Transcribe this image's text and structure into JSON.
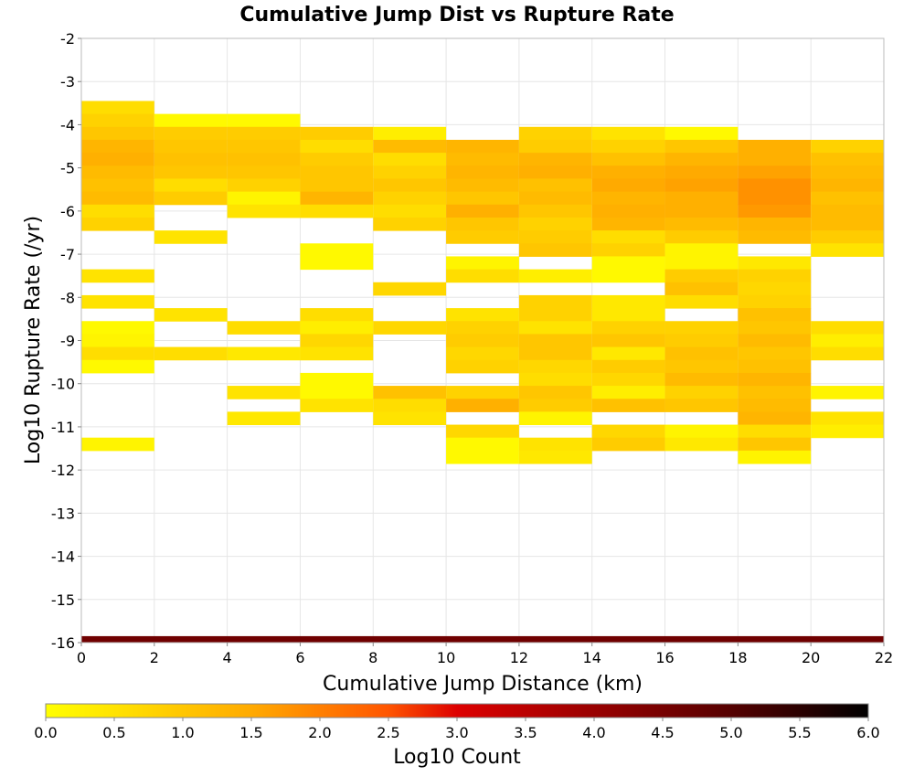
{
  "chart_data": {
    "type": "heatmap",
    "title": "Cumulative Jump Dist vs Rupture Rate",
    "xlabel": "Cumulative Jump Distance (km)",
    "ylabel": "Log10 Rupture Rate (/yr)",
    "xlim": [
      0,
      22
    ],
    "ylim": [
      -16,
      -2
    ],
    "x_ticks": [
      "0",
      "2",
      "4",
      "6",
      "8",
      "10",
      "12",
      "14",
      "16",
      "18",
      "20",
      "22"
    ],
    "y_ticks": [
      "-2",
      "-3",
      "-4",
      "-5",
      "-6",
      "-7",
      "-8",
      "-9",
      "-10",
      "-11",
      "-12",
      "-13",
      "-14",
      "-15",
      "-16"
    ],
    "grid": true,
    "colorbar": {
      "label": "Log10 Count",
      "range": [
        0.0,
        6.0
      ],
      "ticks": [
        "0.0",
        "0.5",
        "1.0",
        "1.5",
        "2.0",
        "2.5",
        "3.0",
        "3.5",
        "4.0",
        "4.5",
        "5.0",
        "5.5",
        "6.0"
      ],
      "placement": "bottom",
      "stops": [
        {
          "v": 0.0,
          "color": "#ffff00"
        },
        {
          "v": 1.5,
          "color": "#ffaa00"
        },
        {
          "v": 2.5,
          "color": "#ff5500"
        },
        {
          "v": 3.0,
          "color": "#dd0000"
        },
        {
          "v": 4.0,
          "color": "#990000"
        },
        {
          "v": 5.0,
          "color": "#550000"
        },
        {
          "v": 6.0,
          "color": "#000000"
        }
      ]
    },
    "bin_size_x": 2,
    "bin_size_y": 0.3,
    "columns": [
      {
        "x": 0,
        "cells": [
          [
            -3.6,
            0.6
          ],
          [
            -3.9,
            0.8
          ],
          [
            -4.2,
            1.0
          ],
          [
            -4.5,
            1.3
          ],
          [
            -4.8,
            1.4
          ],
          [
            -5.1,
            1.2
          ],
          [
            -5.4,
            1.1
          ],
          [
            -5.7,
            1.2
          ],
          [
            -6.0,
            0.6
          ],
          [
            -6.3,
            0.8
          ],
          [
            -7.5,
            0.5
          ],
          [
            -8.1,
            0.5
          ],
          [
            -8.7,
            0.1
          ],
          [
            -9.0,
            0.2
          ],
          [
            -9.3,
            0.6
          ],
          [
            -9.6,
            0.1
          ],
          [
            -11.4,
            0.2
          ]
        ]
      },
      {
        "x": 2,
        "cells": [
          [
            -3.9,
            0.1
          ],
          [
            -4.2,
            0.9
          ],
          [
            -4.5,
            1.0
          ],
          [
            -4.8,
            1.1
          ],
          [
            -5.1,
            1.0
          ],
          [
            -5.4,
            0.6
          ],
          [
            -5.7,
            0.9
          ],
          [
            -6.6,
            0.5
          ],
          [
            -8.4,
            0.5
          ],
          [
            -9.3,
            0.6
          ]
        ]
      },
      {
        "x": 4,
        "cells": [
          [
            -3.9,
            0.1
          ],
          [
            -4.2,
            0.9
          ],
          [
            -4.5,
            1.0
          ],
          [
            -4.8,
            1.1
          ],
          [
            -5.1,
            1.0
          ],
          [
            -5.4,
            0.8
          ],
          [
            -5.7,
            0.2
          ],
          [
            -6.0,
            0.5
          ],
          [
            -8.7,
            0.6
          ],
          [
            -9.3,
            0.4
          ],
          [
            -10.2,
            0.5
          ],
          [
            -10.8,
            0.4
          ]
        ]
      },
      {
        "x": 6,
        "cells": [
          [
            -4.2,
            0.9
          ],
          [
            -4.5,
            0.6
          ],
          [
            -4.8,
            0.9
          ],
          [
            -5.1,
            1.0
          ],
          [
            -5.4,
            1.0
          ],
          [
            -5.7,
            1.3
          ],
          [
            -6.0,
            0.6
          ],
          [
            -6.9,
            0.1
          ],
          [
            -7.2,
            0.1
          ],
          [
            -8.4,
            0.6
          ],
          [
            -8.7,
            0.3
          ],
          [
            -9.0,
            0.7
          ],
          [
            -9.3,
            0.5
          ],
          [
            -9.9,
            0.1
          ],
          [
            -10.2,
            0.1
          ],
          [
            -10.5,
            0.5
          ]
        ]
      },
      {
        "x": 8,
        "cells": [
          [
            -4.2,
            0.3
          ],
          [
            -4.5,
            1.2
          ],
          [
            -4.8,
            0.6
          ],
          [
            -5.1,
            0.8
          ],
          [
            -5.4,
            1.0
          ],
          [
            -5.7,
            0.8
          ],
          [
            -6.0,
            0.6
          ],
          [
            -6.3,
            0.8
          ],
          [
            -7.8,
            0.7
          ],
          [
            -8.7,
            0.7
          ],
          [
            -10.2,
            1.1
          ],
          [
            -10.5,
            0.6
          ],
          [
            -10.8,
            0.5
          ]
        ]
      },
      {
        "x": 10,
        "cells": [
          [
            -4.5,
            1.3
          ],
          [
            -4.8,
            1.2
          ],
          [
            -5.1,
            1.3
          ],
          [
            -5.4,
            1.2
          ],
          [
            -5.7,
            1.0
          ],
          [
            -6.0,
            1.4
          ],
          [
            -6.3,
            1.0
          ],
          [
            -6.6,
            0.9
          ],
          [
            -7.2,
            0.2
          ],
          [
            -7.5,
            0.6
          ],
          [
            -8.4,
            0.5
          ],
          [
            -8.7,
            0.8
          ],
          [
            -9.0,
            0.9
          ],
          [
            -9.3,
            0.7
          ],
          [
            -9.6,
            0.8
          ],
          [
            -10.2,
            0.8
          ],
          [
            -10.5,
            1.4
          ],
          [
            -11.1,
            0.7
          ],
          [
            -11.4,
            0.1
          ],
          [
            -11.7,
            0.1
          ]
        ]
      },
      {
        "x": 12,
        "cells": [
          [
            -4.2,
            0.8
          ],
          [
            -4.5,
            0.9
          ],
          [
            -4.8,
            1.3
          ],
          [
            -5.1,
            1.4
          ],
          [
            -5.4,
            1.1
          ],
          [
            -5.7,
            1.2
          ],
          [
            -6.0,
            1.0
          ],
          [
            -6.3,
            0.8
          ],
          [
            -6.6,
            0.9
          ],
          [
            -6.9,
            1.0
          ],
          [
            -7.5,
            0.3
          ],
          [
            -8.1,
            0.8
          ],
          [
            -8.4,
            0.8
          ],
          [
            -8.7,
            0.5
          ],
          [
            -9.0,
            1.0
          ],
          [
            -9.3,
            1.0
          ],
          [
            -9.6,
            0.7
          ],
          [
            -9.9,
            0.6
          ],
          [
            -10.2,
            1.0
          ],
          [
            -10.5,
            0.9
          ],
          [
            -10.8,
            0.2
          ],
          [
            -11.4,
            0.5
          ],
          [
            -11.7,
            0.4
          ]
        ]
      },
      {
        "x": 14,
        "cells": [
          [
            -4.2,
            0.5
          ],
          [
            -4.5,
            0.8
          ],
          [
            -4.8,
            1.1
          ],
          [
            -5.1,
            1.4
          ],
          [
            -5.4,
            1.5
          ],
          [
            -5.7,
            1.3
          ],
          [
            -6.0,
            1.4
          ],
          [
            -6.3,
            1.3
          ],
          [
            -6.6,
            0.6
          ],
          [
            -6.9,
            0.8
          ],
          [
            -7.2,
            0.1
          ],
          [
            -7.5,
            0.1
          ],
          [
            -8.1,
            0.4
          ],
          [
            -8.4,
            0.4
          ],
          [
            -8.7,
            0.8
          ],
          [
            -9.0,
            1.0
          ],
          [
            -9.3,
            0.4
          ],
          [
            -9.6,
            0.9
          ],
          [
            -9.9,
            0.7
          ],
          [
            -10.2,
            0.3
          ],
          [
            -10.5,
            1.1
          ],
          [
            -11.1,
            0.7
          ],
          [
            -11.4,
            0.9
          ]
        ]
      },
      {
        "x": 16,
        "cells": [
          [
            -4.2,
            0.1
          ],
          [
            -4.5,
            1.0
          ],
          [
            -4.8,
            1.3
          ],
          [
            -5.1,
            1.5
          ],
          [
            -5.4,
            1.6
          ],
          [
            -5.7,
            1.4
          ],
          [
            -6.0,
            1.4
          ],
          [
            -6.3,
            1.2
          ],
          [
            -6.6,
            0.9
          ],
          [
            -6.9,
            0.2
          ],
          [
            -7.2,
            0.2
          ],
          [
            -7.5,
            0.9
          ],
          [
            -7.8,
            1.1
          ],
          [
            -8.1,
            0.6
          ],
          [
            -8.7,
            0.8
          ],
          [
            -9.0,
            0.9
          ],
          [
            -9.3,
            1.1
          ],
          [
            -9.6,
            1.0
          ],
          [
            -9.9,
            1.2
          ],
          [
            -10.2,
            0.8
          ],
          [
            -10.5,
            1.0
          ],
          [
            -11.1,
            0.2
          ],
          [
            -11.4,
            0.4
          ]
        ]
      },
      {
        "x": 18,
        "cells": [
          [
            -4.5,
            1.4
          ],
          [
            -4.8,
            1.4
          ],
          [
            -5.1,
            1.6
          ],
          [
            -5.4,
            1.8
          ],
          [
            -5.7,
            1.8
          ],
          [
            -6.0,
            1.7
          ],
          [
            -6.3,
            1.3
          ],
          [
            -6.6,
            1.2
          ],
          [
            -7.2,
            0.4
          ],
          [
            -7.5,
            0.8
          ],
          [
            -7.8,
            0.7
          ],
          [
            -8.1,
            0.8
          ],
          [
            -8.4,
            1.1
          ],
          [
            -8.7,
            1.0
          ],
          [
            -9.0,
            1.2
          ],
          [
            -9.3,
            1.0
          ],
          [
            -9.6,
            1.1
          ],
          [
            -9.9,
            1.3
          ],
          [
            -10.2,
            1.1
          ],
          [
            -10.5,
            1.2
          ],
          [
            -10.8,
            1.3
          ],
          [
            -11.1,
            0.6
          ],
          [
            -11.4,
            1.0
          ],
          [
            -11.7,
            0.2
          ]
        ]
      },
      {
        "x": 20,
        "cells": [
          [
            -4.5,
            0.8
          ],
          [
            -4.8,
            1.1
          ],
          [
            -5.1,
            1.2
          ],
          [
            -5.4,
            1.3
          ],
          [
            -5.7,
            1.1
          ],
          [
            -6.0,
            1.2
          ],
          [
            -6.3,
            1.2
          ],
          [
            -6.6,
            0.9
          ],
          [
            -6.9,
            0.5
          ],
          [
            -8.7,
            0.6
          ],
          [
            -9.0,
            0.3
          ],
          [
            -9.3,
            0.6
          ],
          [
            -10.2,
            0.2
          ],
          [
            -10.8,
            0.5
          ],
          [
            -11.1,
            0.3
          ]
        ]
      }
    ],
    "bottom_band": {
      "y": -16,
      "value": 4.6,
      "x_range": [
        0,
        22
      ]
    }
  }
}
